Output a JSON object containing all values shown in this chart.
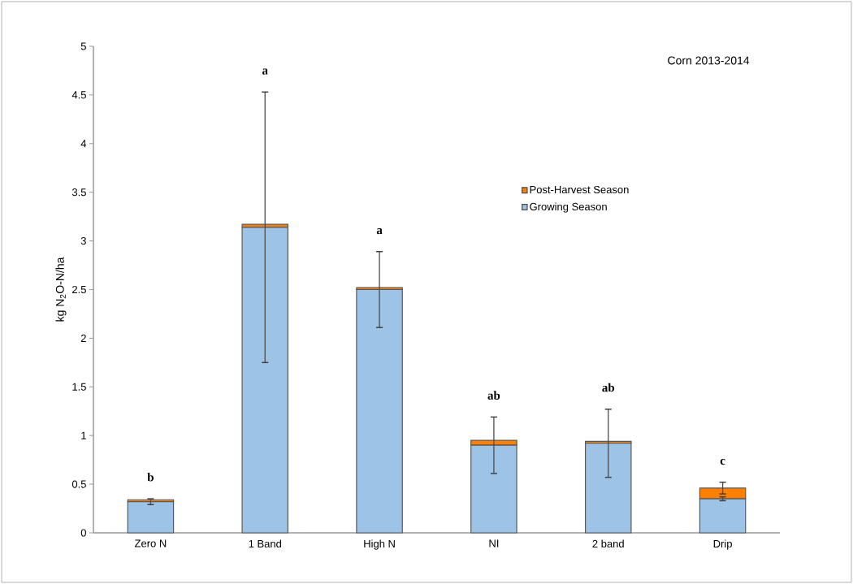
{
  "chart_data": {
    "type": "bar",
    "stacked": true,
    "categories": [
      "Zero N",
      "1 Band",
      "High N",
      "NI",
      "2 band",
      "Drip"
    ],
    "ylabel": "kg N$_{2}$O-N/ha",
    "series": [
      {
        "name": "Growing Season",
        "color": "#9dc3e6",
        "values": [
          0.32,
          3.14,
          2.5,
          0.9,
          0.92,
          0.35
        ],
        "errors": [
          0.03,
          1.39,
          0.39,
          0.29,
          0.35,
          0.02
        ]
      },
      {
        "name": "Post-Harvest Season",
        "color": "#ff7f00",
        "values": [
          0.02,
          0.03,
          0.02,
          0.05,
          0.02,
          0.11
        ],
        "errors": [
          null,
          null,
          null,
          null,
          null,
          0.06
        ]
      }
    ],
    "ylim": [
      0,
      5
    ],
    "yticks": [
      0,
      0.5,
      1,
      1.5,
      2,
      2.5,
      3,
      3.5,
      4,
      4.5,
      5
    ],
    "grid": false,
    "legend": "right",
    "annotations": [
      "Corn 2013-2014",
      "b",
      "a",
      "a",
      "ab",
      "ab",
      "c"
    ]
  }
}
